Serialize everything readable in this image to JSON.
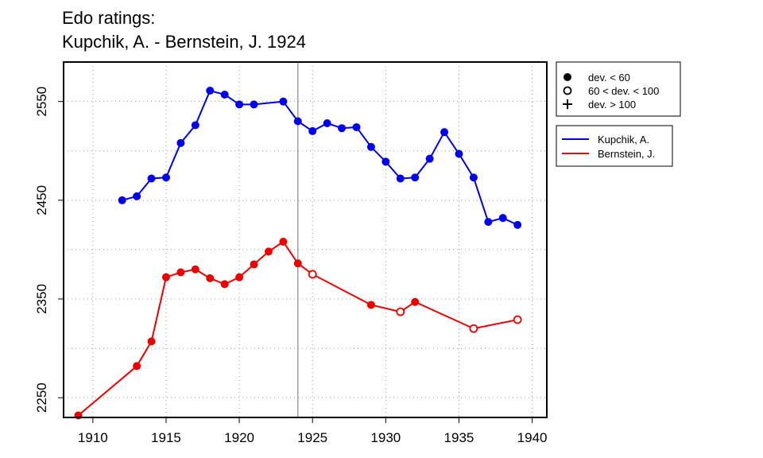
{
  "chart_data": {
    "type": "line",
    "title_lines": [
      "Edo ratings:",
      "Kupchik, A. - Bernstein, J. 1924"
    ],
    "xlabel": "",
    "ylabel": "",
    "xlim": [
      1908,
      1941
    ],
    "ylim": [
      2230,
      2590
    ],
    "x_ticks": [
      1910,
      1915,
      1920,
      1925,
      1930,
      1935,
      1940
    ],
    "y_ticks": [
      2250,
      2350,
      2450,
      2550
    ],
    "grid": true,
    "vline_year": 1924,
    "legend_placement": "top-right, outside plot",
    "marker_legend": [
      {
        "marker": "filled-circle",
        "label": "dev. < 60"
      },
      {
        "marker": "open-circle",
        "label": "60 < dev. < 100"
      },
      {
        "marker": "plus",
        "label": "dev. > 100"
      }
    ],
    "series": [
      {
        "name": "Kupchik, A.",
        "color": "#0000ee",
        "points": [
          {
            "x": 1912,
            "y": 2450,
            "m": "filled"
          },
          {
            "x": 1913,
            "y": 2454,
            "m": "filled"
          },
          {
            "x": 1914,
            "y": 2472,
            "m": "filled"
          },
          {
            "x": 1915,
            "y": 2473,
            "m": "filled"
          },
          {
            "x": 1916,
            "y": 2508,
            "m": "filled"
          },
          {
            "x": 1917,
            "y": 2526,
            "m": "filled"
          },
          {
            "x": 1918,
            "y": 2561,
            "m": "filled"
          },
          {
            "x": 1919,
            "y": 2557,
            "m": "filled"
          },
          {
            "x": 1920,
            "y": 2547,
            "m": "filled"
          },
          {
            "x": 1921,
            "y": 2547,
            "m": "filled"
          },
          {
            "x": 1923,
            "y": 2550,
            "m": "filled"
          },
          {
            "x": 1924,
            "y": 2530,
            "m": "filled"
          },
          {
            "x": 1925,
            "y": 2520,
            "m": "filled"
          },
          {
            "x": 1926,
            "y": 2528,
            "m": "filled"
          },
          {
            "x": 1927,
            "y": 2523,
            "m": "filled"
          },
          {
            "x": 1928,
            "y": 2524,
            "m": "filled"
          },
          {
            "x": 1929,
            "y": 2504,
            "m": "filled"
          },
          {
            "x": 1930,
            "y": 2489,
            "m": "filled"
          },
          {
            "x": 1931,
            "y": 2472,
            "m": "filled"
          },
          {
            "x": 1932,
            "y": 2473,
            "m": "filled"
          },
          {
            "x": 1933,
            "y": 2492,
            "m": "filled"
          },
          {
            "x": 1934,
            "y": 2519,
            "m": "filled"
          },
          {
            "x": 1935,
            "y": 2497,
            "m": "filled"
          },
          {
            "x": 1936,
            "y": 2473,
            "m": "filled"
          },
          {
            "x": 1937,
            "y": 2428,
            "m": "filled"
          },
          {
            "x": 1938,
            "y": 2432,
            "m": "filled"
          },
          {
            "x": 1939,
            "y": 2425,
            "m": "filled"
          }
        ]
      },
      {
        "name": "Bernstein, J.",
        "color": "#ee0000",
        "points": [
          {
            "x": 1909,
            "y": 2232,
            "m": "filled"
          },
          {
            "x": 1913,
            "y": 2282,
            "m": "filled"
          },
          {
            "x": 1914,
            "y": 2307,
            "m": "filled"
          },
          {
            "x": 1915,
            "y": 2372,
            "m": "filled"
          },
          {
            "x": 1916,
            "y": 2377,
            "m": "filled"
          },
          {
            "x": 1917,
            "y": 2380,
            "m": "filled"
          },
          {
            "x": 1918,
            "y": 2371,
            "m": "filled"
          },
          {
            "x": 1919,
            "y": 2365,
            "m": "filled"
          },
          {
            "x": 1920,
            "y": 2372,
            "m": "filled"
          },
          {
            "x": 1921,
            "y": 2385,
            "m": "filled"
          },
          {
            "x": 1922,
            "y": 2398,
            "m": "filled"
          },
          {
            "x": 1923,
            "y": 2408,
            "m": "filled"
          },
          {
            "x": 1924,
            "y": 2386,
            "m": "filled"
          },
          {
            "x": 1925,
            "y": 2375,
            "m": "open"
          },
          {
            "x": 1929,
            "y": 2344,
            "m": "filled"
          },
          {
            "x": 1931,
            "y": 2337,
            "m": "open"
          },
          {
            "x": 1932,
            "y": 2347,
            "m": "filled"
          },
          {
            "x": 1936,
            "y": 2320,
            "m": "open"
          },
          {
            "x": 1939,
            "y": 2329,
            "m": "open"
          }
        ]
      }
    ]
  }
}
